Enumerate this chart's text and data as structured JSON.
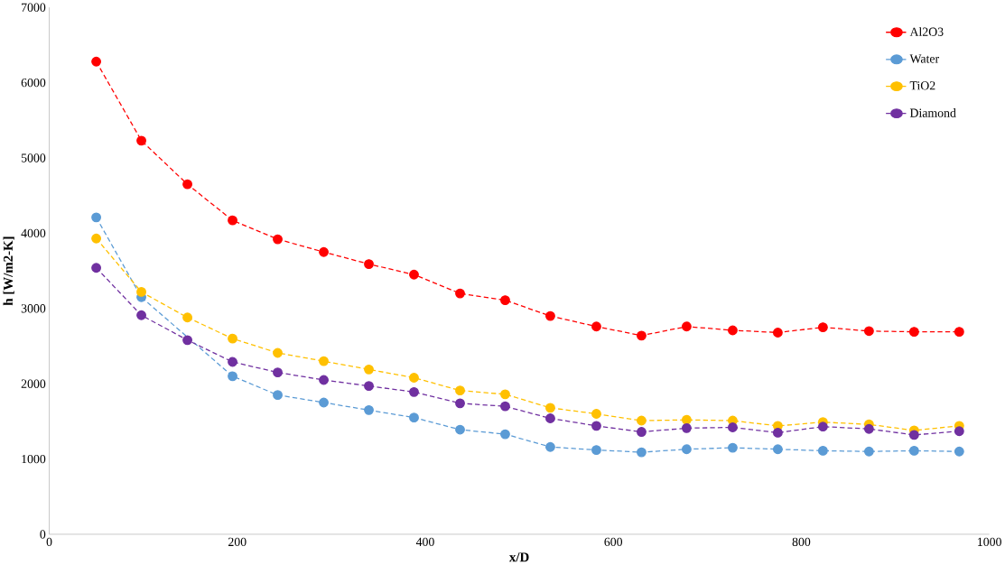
{
  "chart_data": {
    "type": "line",
    "xlabel": "x/D",
    "ylabel": "h [W/m2-K]",
    "x": [
      50,
      98,
      147,
      195,
      243,
      292,
      340,
      388,
      437,
      485,
      533,
      582,
      630,
      678,
      727,
      775,
      823,
      872,
      920,
      968
    ],
    "series": [
      {
        "name": "Al2O3",
        "color": "#ff0000",
        "values": [
          6280,
          5230,
          4650,
          4170,
          3920,
          3750,
          3590,
          3450,
          3200,
          3110,
          2900,
          2760,
          2640,
          2760,
          2710,
          2680,
          2750,
          2700,
          2690,
          2690
        ]
      },
      {
        "name": "Water",
        "color": "#5b9bd5",
        "values": [
          4210,
          3150,
          null,
          2100,
          1850,
          1750,
          1650,
          1550,
          1390,
          1330,
          1160,
          1120,
          1090,
          1130,
          1150,
          1130,
          1110,
          1100,
          1110,
          1100
        ]
      },
      {
        "name": "TiO2",
        "color": "#ffc000",
        "values": [
          3930,
          3220,
          2880,
          2600,
          2410,
          2300,
          2190,
          2080,
          1910,
          1860,
          1680,
          1600,
          1510,
          1520,
          1510,
          1440,
          1490,
          1460,
          1380,
          1440
        ]
      },
      {
        "name": "Diamond",
        "color": "#7030a0",
        "values": [
          3540,
          2910,
          2580,
          2290,
          2150,
          2050,
          1970,
          1890,
          1740,
          1700,
          1540,
          1440,
          1360,
          1410,
          1420,
          1350,
          1430,
          1400,
          1320,
          1370
        ]
      }
    ],
    "xlim": [
      0,
      1000
    ],
    "ylim": [
      0,
      7000
    ],
    "xticks": [
      0,
      200,
      400,
      600,
      800,
      1000
    ],
    "yticks": [
      0,
      1000,
      2000,
      3000,
      4000,
      5000,
      6000,
      7000
    ],
    "grid": false,
    "legend": "top right",
    "marker": "circle",
    "line_style": "dashed"
  }
}
